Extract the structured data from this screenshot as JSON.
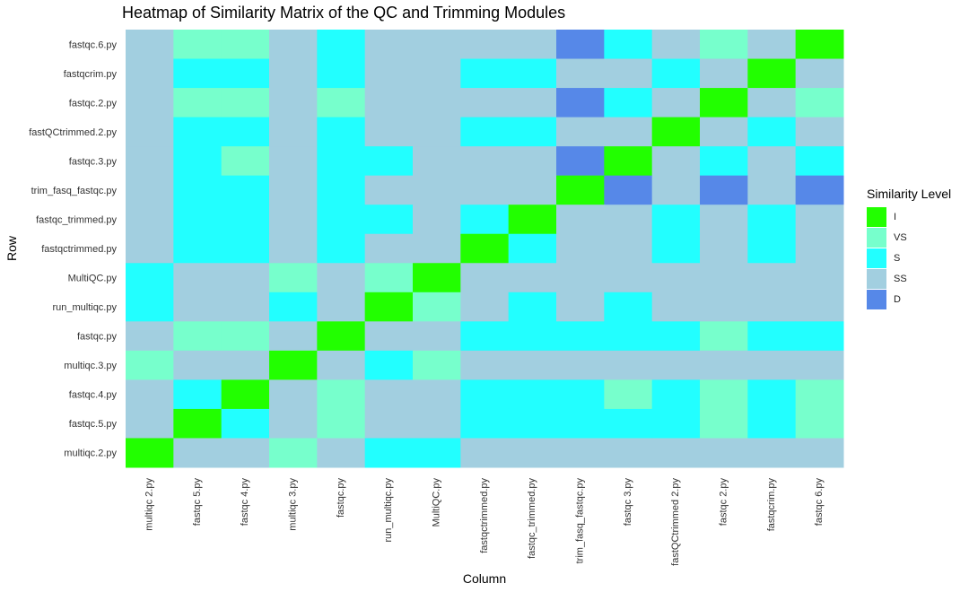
{
  "chart_data": {
    "type": "heatmap",
    "title": "Heatmap of Similarity Matrix of the QC and Trimming Modules",
    "xlabel": "Column",
    "ylabel": "Row",
    "x": [
      "multiqc.2.py",
      "fastqc.5.py",
      "fastqc.4.py",
      "multiqc.3.py",
      "fastqc.py",
      "run_multiqc.py",
      "MultiQC.py",
      "fastqctrimmed.py",
      "fastqc_trimmed.py",
      "trim_fasq_fastqc.py",
      "fastqc.3.py",
      "fastQCtrimmed.2.py",
      "fastqc.2.py",
      "fastqcrim.py",
      "fastqc.6.py"
    ],
    "x_tick_labels": [
      "multiqc 2.py",
      "fastqc 5.py",
      "fastqc 4.py",
      "multiqc 3.py",
      "fastqc.py",
      "run_multiqc.py",
      "MultiQC.py",
      "fastqctrimmed.py",
      "fastqc_trimmed.py",
      "trim_fasq_fastqc.py",
      "fastqc 3.py",
      "fastQCtrimmed 2.py",
      "fastqc 2.py",
      "fastqcrim.py",
      "fastqc 6.py"
    ],
    "y": [
      "fastqc.6.py",
      "fastqcrim.py",
      "fastqc.2.py",
      "fastQCtrimmed.2.py",
      "fastqc.3.py",
      "trim_fasq_fastqc.py",
      "fastqc_trimmed.py",
      "fastqctrimmed.py",
      "MultiQC.py",
      "run_multiqc.py",
      "fastqc.py",
      "multiqc.3.py",
      "fastqc.4.py",
      "fastqc.5.py",
      "multiqc.2.py"
    ],
    "values": [
      [
        "SS",
        "VS",
        "VS",
        "SS",
        "S",
        "SS",
        "SS",
        "SS",
        "SS",
        "D",
        "S",
        "SS",
        "VS",
        "SS",
        "I"
      ],
      [
        "SS",
        "S",
        "S",
        "SS",
        "S",
        "SS",
        "SS",
        "S",
        "S",
        "SS",
        "SS",
        "S",
        "SS",
        "I",
        "SS"
      ],
      [
        "SS",
        "VS",
        "VS",
        "SS",
        "VS",
        "SS",
        "SS",
        "SS",
        "SS",
        "D",
        "S",
        "SS",
        "I",
        "SS",
        "VS"
      ],
      [
        "SS",
        "S",
        "S",
        "SS",
        "S",
        "SS",
        "SS",
        "S",
        "S",
        "SS",
        "SS",
        "I",
        "SS",
        "S",
        "SS"
      ],
      [
        "SS",
        "S",
        "VS",
        "SS",
        "S",
        "S",
        "SS",
        "SS",
        "SS",
        "D",
        "I",
        "SS",
        "S",
        "SS",
        "S"
      ],
      [
        "SS",
        "S",
        "S",
        "SS",
        "S",
        "SS",
        "SS",
        "SS",
        "SS",
        "I",
        "D",
        "SS",
        "D",
        "SS",
        "D"
      ],
      [
        "SS",
        "S",
        "S",
        "SS",
        "S",
        "S",
        "SS",
        "S",
        "I",
        "SS",
        "SS",
        "S",
        "SS",
        "S",
        "SS"
      ],
      [
        "SS",
        "S",
        "S",
        "SS",
        "S",
        "SS",
        "SS",
        "I",
        "S",
        "SS",
        "SS",
        "S",
        "SS",
        "S",
        "SS"
      ],
      [
        "S",
        "SS",
        "SS",
        "VS",
        "SS",
        "VS",
        "I",
        "SS",
        "SS",
        "SS",
        "SS",
        "SS",
        "SS",
        "SS",
        "SS"
      ],
      [
        "S",
        "SS",
        "SS",
        "S",
        "SS",
        "I",
        "VS",
        "SS",
        "S",
        "SS",
        "S",
        "SS",
        "SS",
        "SS",
        "SS"
      ],
      [
        "SS",
        "VS",
        "VS",
        "SS",
        "I",
        "SS",
        "SS",
        "S",
        "S",
        "S",
        "S",
        "S",
        "VS",
        "S",
        "S"
      ],
      [
        "VS",
        "SS",
        "SS",
        "I",
        "SS",
        "S",
        "VS",
        "SS",
        "SS",
        "SS",
        "SS",
        "SS",
        "SS",
        "SS",
        "SS"
      ],
      [
        "SS",
        "S",
        "I",
        "SS",
        "VS",
        "SS",
        "SS",
        "S",
        "S",
        "S",
        "VS",
        "S",
        "VS",
        "S",
        "VS"
      ],
      [
        "SS",
        "I",
        "S",
        "SS",
        "VS",
        "SS",
        "SS",
        "S",
        "S",
        "S",
        "S",
        "S",
        "VS",
        "S",
        "VS"
      ],
      [
        "I",
        "SS",
        "SS",
        "VS",
        "SS",
        "S",
        "S",
        "SS",
        "SS",
        "SS",
        "SS",
        "SS",
        "SS",
        "SS",
        "SS"
      ]
    ],
    "legend": {
      "title": "Similarity Level",
      "position": "right",
      "levels": [
        {
          "label": "I",
          "color": "#22FF00"
        },
        {
          "label": "VS",
          "color": "#77FFCC"
        },
        {
          "label": "S",
          "color": "#22FFFF"
        },
        {
          "label": "SS",
          "color": "#A2CFE0"
        },
        {
          "label": "D",
          "color": "#5688E8"
        }
      ]
    },
    "grid": true
  }
}
